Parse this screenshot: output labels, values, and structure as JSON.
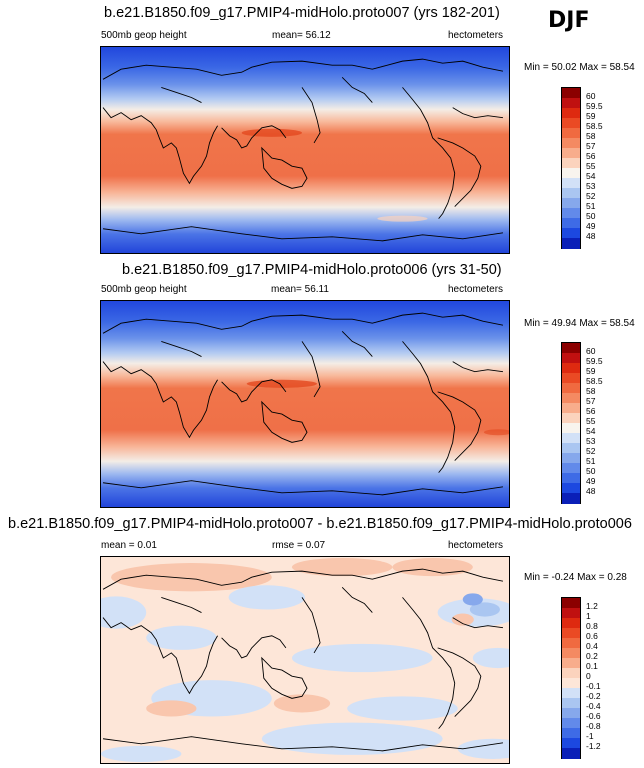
{
  "season": "DJF",
  "panels": [
    {
      "title": "b.e21.B1850.f09_g17.PMIP4-midHolo.proto007 (yrs 182-201)",
      "left_label": "500mb geop height",
      "center_label": "mean=  56.12",
      "right_label": "hectometers",
      "min_max": "Min =  50.02 Max =  58.54"
    },
    {
      "title": "b.e21.B1850.f09_g17.PMIP4-midHolo.proto006 (yrs 31-50)",
      "left_label": "500mb geop height",
      "center_label": "mean=  56.11",
      "right_label": "hectometers",
      "min_max": "Min =  49.94 Max =  58.54"
    },
    {
      "title": "b.e21.B1850.f09_g17.PMIP4-midHolo.proto007 - b.e21.B1850.f09_g17.PMIP4-midHolo.proto006",
      "left_label": "mean =  0.01",
      "center_label": "rmse =  0.07",
      "right_label": "hectometers",
      "min_max": "Min = -0.24 Max =  0.28"
    }
  ],
  "colorbars": [
    {
      "labels": [
        "60",
        "59.5",
        "59",
        "58.5",
        "58",
        "57",
        "56",
        "55",
        "54",
        "53",
        "52",
        "51",
        "50",
        "49",
        "48"
      ],
      "colors": [
        "#8b0000",
        "#c01010",
        "#de2a10",
        "#ea4a24",
        "#f06a40",
        "#f48a62",
        "#f8ad8c",
        "#fbd3bd",
        "#f8f4ee",
        "#d2e1f7",
        "#aac6f1",
        "#86a8ec",
        "#628aea",
        "#3e6be6",
        "#1c48e0",
        "#0a1fb8"
      ]
    },
    {
      "labels": [
        "60",
        "59.5",
        "59",
        "58.5",
        "58",
        "57",
        "56",
        "55",
        "54",
        "53",
        "52",
        "51",
        "50",
        "49",
        "48"
      ],
      "colors": [
        "#8b0000",
        "#c01010",
        "#de2a10",
        "#ea4a24",
        "#f06a40",
        "#f48a62",
        "#f8ad8c",
        "#fbd3bd",
        "#f8f4ee",
        "#d2e1f7",
        "#aac6f1",
        "#86a8ec",
        "#628aea",
        "#3e6be6",
        "#1c48e0",
        "#0a1fb8"
      ]
    },
    {
      "labels": [
        "1.2",
        "1",
        "0.8",
        "0.6",
        "0.4",
        "0.2",
        "0.1",
        "0",
        "-0.1",
        "-0.2",
        "-0.4",
        "-0.6",
        "-0.8",
        "-1",
        "-1.2"
      ],
      "colors": [
        "#8b0000",
        "#c01010",
        "#de2a10",
        "#ea4a24",
        "#f06a40",
        "#f48a62",
        "#f8ad8c",
        "#fbd3bd",
        "#fde6d8",
        "#d2e1f7",
        "#aac6f1",
        "#86a8ec",
        "#628aea",
        "#3e6be6",
        "#1c48e0",
        "#0a1fb8"
      ]
    }
  ]
}
